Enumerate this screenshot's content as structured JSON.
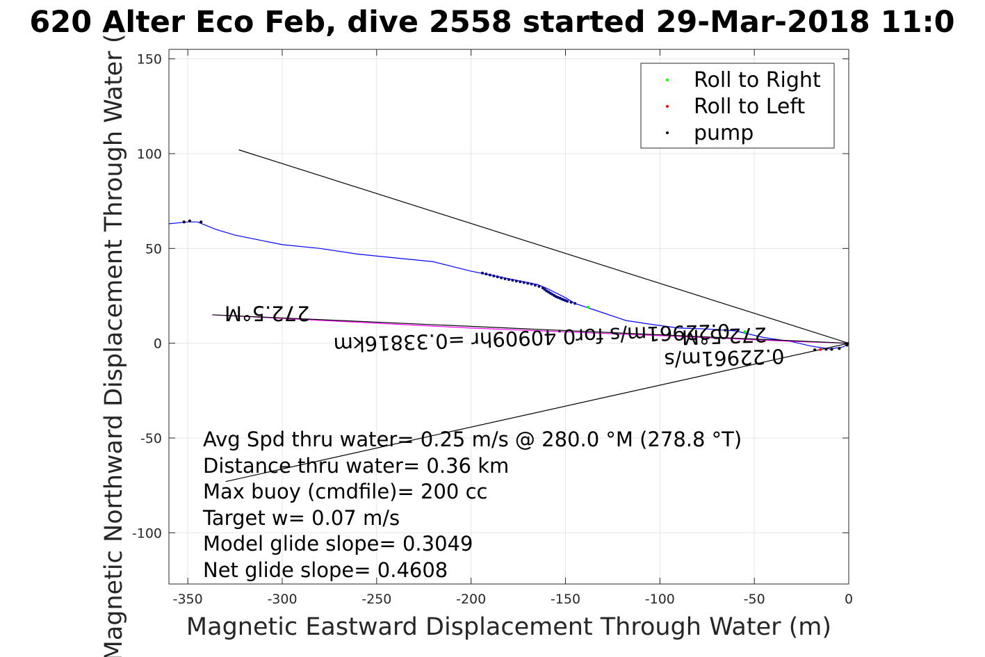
{
  "title": "620 Alter Eco Feb, dive 2558 started 29-Mar-2018 11:0",
  "chart_data": {
    "type": "scatter",
    "title": "620 Alter Eco Feb, dive 2558 started 29-Mar-2018 11:0",
    "xlabel": "Magnetic Eastward Displacement Through Water (m)",
    "ylabel": "Magnetic Northward Displacement Through Water (",
    "xlim": [
      -360,
      0
    ],
    "ylim": [
      -127,
      155
    ],
    "x_ticks": [
      -350,
      -300,
      -250,
      -200,
      -150,
      -100,
      -50,
      0
    ],
    "x_tick_labels": [
      "-350",
      "-300",
      "-250",
      "-200",
      "-150",
      "-100",
      "-50",
      "0"
    ],
    "y_ticks": [
      150,
      100,
      50,
      0,
      -50,
      -100
    ],
    "y_tick_labels": [
      "150",
      "100",
      "50",
      "0",
      "-50",
      "-100"
    ],
    "grid": true,
    "legend": {
      "placement": "top-right",
      "entries": [
        {
          "label": "Roll to Right",
          "color": "#00ff00"
        },
        {
          "label": "Roll to Left",
          "color": "#ff0000"
        },
        {
          "label": "pump",
          "color": "#000000"
        }
      ]
    },
    "series": [
      {
        "type": "line",
        "color": "#0000ff",
        "points": [
          [
            -360,
            63
          ],
          [
            -350,
            64
          ],
          [
            -345,
            64
          ],
          [
            -335,
            60
          ],
          [
            -325,
            57
          ],
          [
            -315,
            55
          ],
          [
            -300,
            52
          ],
          [
            -280,
            50
          ],
          [
            -260,
            47
          ],
          [
            -240,
            45
          ],
          [
            -220,
            43
          ],
          [
            -200,
            38
          ],
          [
            -185,
            35
          ],
          [
            -175,
            33
          ],
          [
            -165,
            31
          ],
          [
            -160,
            29
          ],
          [
            -150,
            24
          ],
          [
            -145,
            21
          ],
          [
            -130,
            16
          ],
          [
            -118,
            12
          ],
          [
            -105,
            10
          ],
          [
            -90,
            8
          ],
          [
            -75,
            7.5
          ],
          [
            -60,
            6.5
          ],
          [
            -45,
            3
          ],
          [
            -30,
            0.8
          ],
          [
            -20,
            -1.5
          ],
          [
            -10,
            -3
          ],
          [
            -3,
            -2
          ],
          [
            0,
            0
          ]
        ]
      },
      {
        "type": "line",
        "color": "#ff00ff",
        "points": [
          [
            -337,
            15
          ],
          [
            -200,
            8
          ],
          [
            -100,
            4
          ],
          [
            -30,
            1
          ],
          [
            0,
            0
          ]
        ]
      },
      {
        "type": "line",
        "color": "#000000",
        "points": [
          [
            -323,
            102
          ],
          [
            0,
            0
          ]
        ]
      },
      {
        "type": "line",
        "color": "#000000",
        "points": [
          [
            -337,
            15
          ],
          [
            0,
            0
          ]
        ]
      },
      {
        "type": "line",
        "color": "#000000",
        "points": [
          [
            -330,
            -73
          ],
          [
            0,
            0
          ]
        ]
      },
      {
        "type": "scatter",
        "name": "pump",
        "color": "#000080",
        "points": [
          [
            -194,
            37
          ],
          [
            -192,
            36.5
          ],
          [
            -190,
            36
          ],
          [
            -188,
            35.5
          ],
          [
            -186,
            35
          ],
          [
            -184,
            34.5
          ],
          [
            -182,
            34
          ],
          [
            -180,
            33.6
          ],
          [
            -178,
            33.2
          ],
          [
            -176,
            32.8
          ],
          [
            -174,
            32.4
          ],
          [
            -172,
            32
          ],
          [
            -170,
            31.6
          ],
          [
            -168,
            31.2
          ],
          [
            -166,
            30.6
          ],
          [
            -164,
            30
          ],
          [
            -162,
            29.2
          ],
          [
            -161,
            28.4
          ],
          [
            -160,
            27.6
          ],
          [
            -159,
            27
          ],
          [
            -158,
            26.4
          ],
          [
            -157,
            25.8
          ],
          [
            -156,
            25.2
          ],
          [
            -155,
            24.6
          ],
          [
            -154,
            24.2
          ],
          [
            -153,
            23.8
          ],
          [
            -152,
            23.3
          ],
          [
            -151,
            22.9
          ],
          [
            -150,
            22.5
          ],
          [
            -149,
            22.1
          ],
          [
            -147,
            21.6
          ],
          [
            -145,
            21
          ]
        ]
      },
      {
        "type": "scatter",
        "name": "Roll to Right",
        "color": "#00ff00",
        "points": [
          [
            -138,
            19
          ],
          [
            -55,
            6
          ]
        ]
      },
      {
        "type": "scatter",
        "name": "Roll to Left",
        "color": "#ff0000",
        "points": [
          [
            -352,
            64
          ],
          [
            -349,
            64.5
          ],
          [
            -343,
            64
          ],
          [
            -18,
            -3.5
          ],
          [
            -15,
            -3.3
          ],
          [
            -12,
            -3.2
          ],
          [
            -9,
            -3.2
          ],
          [
            -5,
            -2.8
          ],
          [
            -1,
            -1
          ]
        ]
      },
      {
        "type": "scatter",
        "name": "pump",
        "color": "#000000",
        "points": [
          [
            -352,
            64
          ],
          [
            -349,
            64.5
          ],
          [
            -343,
            64
          ],
          [
            -18,
            -3.5
          ],
          [
            -12,
            -3.2
          ],
          [
            -9,
            -3.2
          ],
          [
            -5,
            -2.8
          ],
          [
            -1,
            -1
          ],
          [
            0,
            0
          ]
        ]
      }
    ],
    "annotations": [
      {
        "text": "272.5°M",
        "x": -308,
        "y": 19.5,
        "rotation": 180
      },
      {
        "text": "0.22961m/s for0.40909hr =0.33816km",
        "x": -168,
        "y": 6.5,
        "rotation": 178
      },
      {
        "text": "272.5°M",
        "x": -66,
        "y": 7.5,
        "rotation": 178
      },
      {
        "text": "0.22961m/s",
        "x": -66,
        "y": -4.2,
        "rotation": 178
      }
    ],
    "stats": [
      "Avg Spd thru water=  0.25 m/s @ 280.0 °M (278.8 °T)",
      "Distance thru water=  0.36 km",
      "Max buoy (cmdfile)= 200 cc",
      "Target w= 0.07 m/s",
      "Model glide slope= 0.3049",
      "Net glide slope= 0.4608"
    ]
  }
}
